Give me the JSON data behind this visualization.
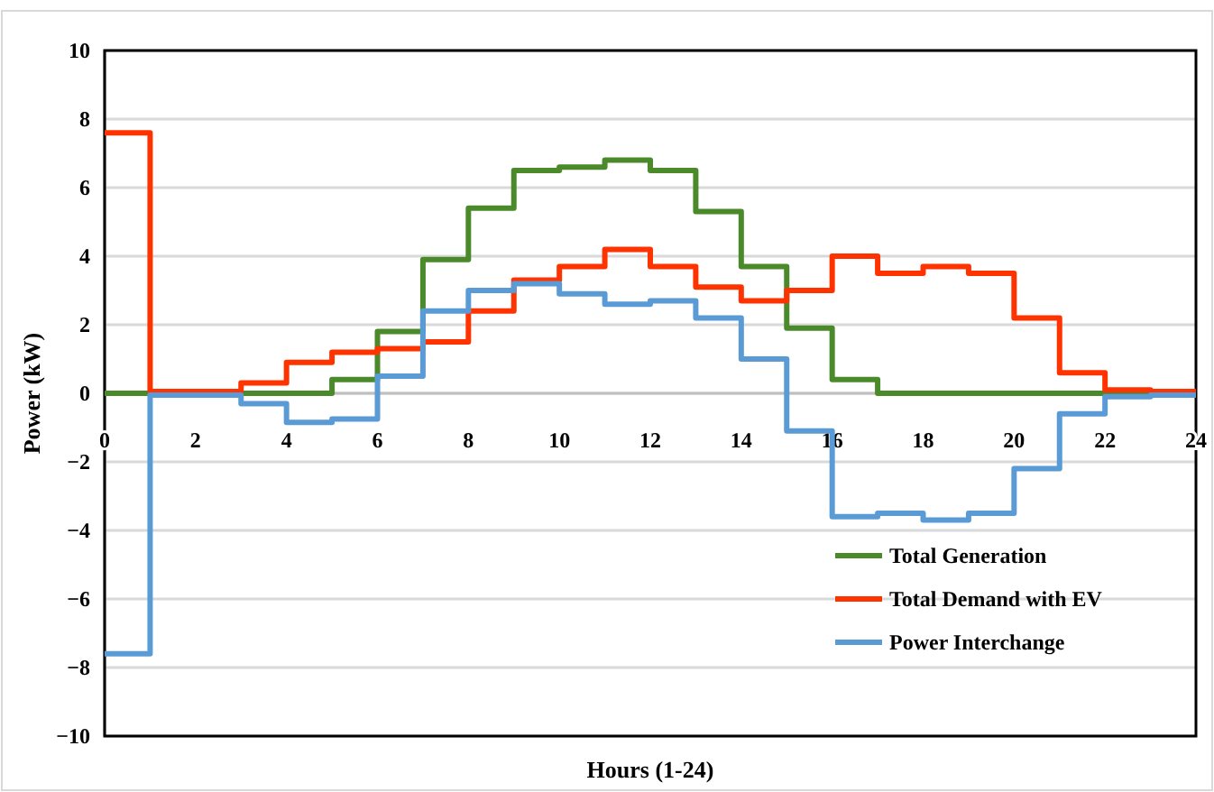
{
  "chart_data": {
    "type": "step",
    "xlabel": "Hours (1-24)",
    "ylabel": "Power (kW)",
    "x": [
      0,
      1,
      2,
      3,
      4,
      5,
      6,
      7,
      8,
      9,
      10,
      11,
      12,
      13,
      14,
      15,
      16,
      17,
      18,
      19,
      20,
      21,
      22,
      23,
      24
    ],
    "xlim": [
      0,
      24
    ],
    "xticks": [
      0,
      2,
      4,
      6,
      8,
      10,
      12,
      14,
      16,
      18,
      20,
      22,
      24
    ],
    "ylim": [
      -10,
      10
    ],
    "yticks": [
      -10,
      -8,
      -6,
      -4,
      -2,
      0,
      2,
      4,
      6,
      8,
      10
    ],
    "grid": "y",
    "legend": "bottom right",
    "series": [
      {
        "name": "Total Generation",
        "color": "#4a8a2a",
        "values": [
          0,
          0,
          0,
          0,
          0,
          0.4,
          1.8,
          3.9,
          5.4,
          6.5,
          6.6,
          6.8,
          6.5,
          5.3,
          3.7,
          1.9,
          0.4,
          0,
          0,
          0,
          0,
          0,
          0,
          0,
          0
        ]
      },
      {
        "name": "Total Demand with EV",
        "color": "#ff3300",
        "values": [
          7.6,
          0.05,
          0.05,
          0.3,
          0.9,
          1.2,
          1.3,
          1.5,
          2.4,
          3.3,
          3.7,
          4.2,
          3.7,
          3.1,
          2.7,
          3.0,
          4.0,
          3.5,
          3.7,
          3.5,
          2.2,
          0.6,
          0.1,
          0.05,
          0.05
        ]
      },
      {
        "name": "Power Interchange",
        "color": "#5b9bd5",
        "values": [
          -7.6,
          -0.05,
          -0.05,
          -0.3,
          -0.85,
          -0.75,
          0.5,
          2.4,
          3.0,
          3.2,
          2.9,
          2.6,
          2.7,
          2.2,
          1.0,
          -1.1,
          -3.6,
          -3.5,
          -3.7,
          -3.5,
          -2.2,
          -0.6,
          -0.1,
          -0.05,
          -0.05
        ]
      }
    ]
  }
}
